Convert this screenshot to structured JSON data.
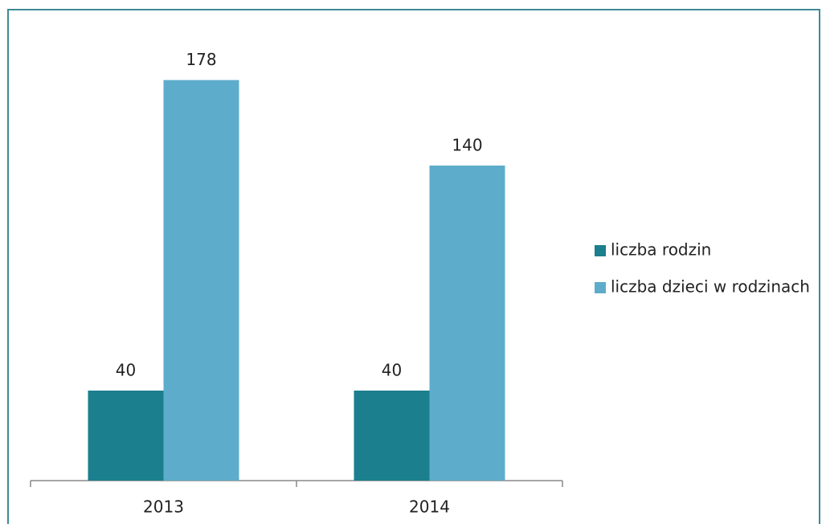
{
  "chart_data": {
    "type": "bar",
    "categories": [
      "2013",
      "2014"
    ],
    "series": [
      {
        "name": "liczba rodzin",
        "color": "#1b7f8e",
        "values": [
          40,
          40
        ]
      },
      {
        "name": "liczba dzieci w rodzinach",
        "color": "#5eaccb",
        "values": [
          178,
          140
        ]
      }
    ],
    "ylim": [
      0,
      200
    ],
    "legend": "right"
  }
}
